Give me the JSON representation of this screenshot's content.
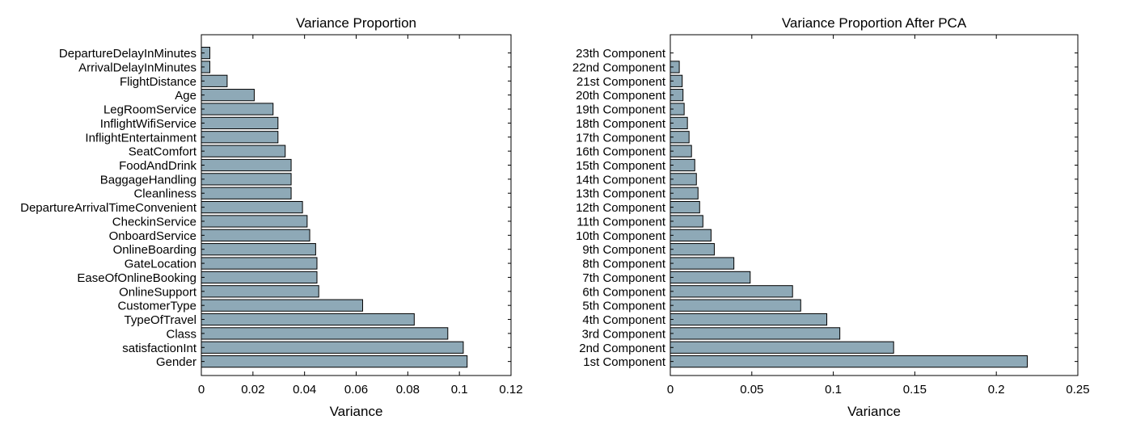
{
  "chart_data": [
    {
      "type": "bar",
      "orientation": "horizontal",
      "title": "Variance Proportion",
      "xlabel": "Variance",
      "ylabel": "",
      "xlim": [
        0,
        0.12
      ],
      "xticks": [
        0,
        0.02,
        0.04,
        0.06,
        0.08,
        0.1,
        0.12
      ],
      "xtick_labels": [
        "0",
        "0.02",
        "0.04",
        "0.06",
        "0.08",
        "0.1",
        "0.12"
      ],
      "grid": false,
      "bar_color": "#8ea9b7",
      "categories": [
        "Gender",
        "satisfactionInt",
        "Class",
        "TypeOfTravel",
        "CustomerType",
        "OnlineSupport",
        "EaseOfOnlineBooking",
        "GateLocation",
        "OnlineBoarding",
        "OnboardService",
        "CheckinService",
        "DepartureArrivalTimeConvenient",
        "Cleanliness",
        "BaggageHandling",
        "FoodAndDrink",
        "SeatComfort",
        "InflightEntertainment",
        "InflightWifiService",
        "LegRoomService",
        "Age",
        "FlightDistance",
        "ArrivalDelayInMinutes",
        "DepartureDelayInMinutes"
      ],
      "values": [
        0.103,
        0.1015,
        0.0955,
        0.0825,
        0.0625,
        0.0455,
        0.0448,
        0.0448,
        0.0443,
        0.042,
        0.041,
        0.0392,
        0.0348,
        0.0348,
        0.0348,
        0.0325,
        0.0297,
        0.0297,
        0.0278,
        0.0205,
        0.01,
        0.0033,
        0.0033
      ]
    },
    {
      "type": "bar",
      "orientation": "horizontal",
      "title": "Variance Proportion After PCA",
      "xlabel": "Variance",
      "ylabel": "",
      "xlim": [
        0,
        0.25
      ],
      "xticks": [
        0,
        0.05,
        0.1,
        0.15,
        0.2,
        0.25
      ],
      "xtick_labels": [
        "0",
        "0.05",
        "0.1",
        "0.15",
        "0.2",
        "0.25"
      ],
      "grid": false,
      "bar_color": "#8ea9b7",
      "categories": [
        "1st Component",
        "2nd Component",
        "3rd Component",
        "4th Component",
        "5th Component",
        "6th Component",
        "7th Component",
        "8th Component",
        "9th Component",
        "10th Component",
        "11th Component",
        "12th Component",
        "13th Component",
        "14th Component",
        "15th Component",
        "16th Component",
        "17th Component",
        "18th Component",
        "19th Component",
        "20th Component",
        "21st Component",
        "22nd Component",
        "23th Component"
      ],
      "values": [
        0.219,
        0.137,
        0.104,
        0.096,
        0.08,
        0.075,
        0.049,
        0.039,
        0.027,
        0.025,
        0.02,
        0.018,
        0.017,
        0.016,
        0.015,
        0.013,
        0.0115,
        0.0105,
        0.0085,
        0.0078,
        0.0073,
        0.0055,
        0.0
      ]
    }
  ]
}
